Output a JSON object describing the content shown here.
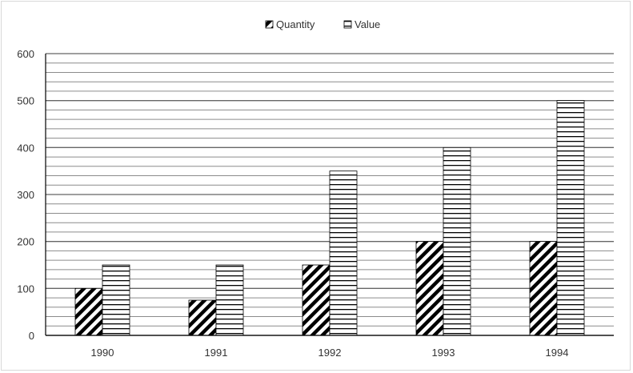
{
  "chart_data": {
    "type": "bar",
    "categories": [
      "1990",
      "1991",
      "1992",
      "1993",
      "1994"
    ],
    "series": [
      {
        "name": "Quantity",
        "values": [
          100,
          75,
          150,
          200,
          200
        ],
        "pattern": "diagonal-hatch"
      },
      {
        "name": "Value",
        "values": [
          150,
          150,
          350,
          400,
          500
        ],
        "pattern": "horizontal-lines"
      }
    ],
    "ylim": [
      0,
      600
    ],
    "yticks": [
      0,
      100,
      200,
      300,
      400,
      500,
      600
    ],
    "ytick_labels": [
      "0",
      "100",
      "200",
      "300",
      "400",
      "500",
      "600"
    ],
    "title": "",
    "xlabel": "",
    "ylabel": "",
    "grid": true,
    "minor_grid": true,
    "legend_position": "top-center",
    "colors": {
      "major_grid": "#666666",
      "minor_grid": "#8c8c8c",
      "bar_stroke": "#000000",
      "text": "#333333"
    }
  }
}
